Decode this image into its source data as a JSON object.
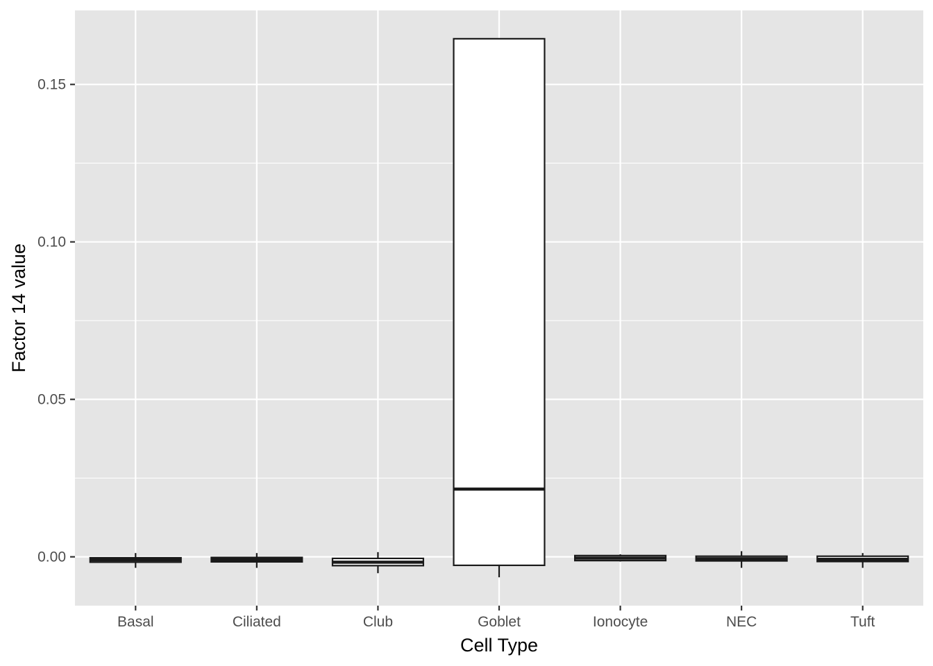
{
  "chart_data": {
    "type": "box",
    "xlabel": "Cell Type",
    "ylabel": "Factor 14 value",
    "ylim": [
      -0.0155,
      0.1735
    ],
    "yticks": [
      0.0,
      0.05,
      0.1,
      0.15
    ],
    "ytick_labels": [
      "0.00",
      "0.05",
      "0.10",
      "0.15"
    ],
    "grid": true,
    "categories": [
      "Basal",
      "Ciliated",
      "Club",
      "Goblet",
      "Ionocyte",
      "NEC",
      "Tuft"
    ],
    "boxes": [
      {
        "category": "Basal",
        "whisker_low": -0.0035,
        "q1": -0.0017,
        "median": -0.001,
        "q3": -0.0003,
        "whisker_high": 0.0012
      },
      {
        "category": "Ciliated",
        "whisker_low": -0.0035,
        "q1": -0.0016,
        "median": -0.0009,
        "q3": -0.0002,
        "whisker_high": 0.0012
      },
      {
        "category": "Club",
        "whisker_low": -0.0052,
        "q1": -0.0028,
        "median": -0.0017,
        "q3": -0.0005,
        "whisker_high": 0.0015
      },
      {
        "category": "Goblet",
        "whisker_low": -0.0065,
        "q1": -0.0027,
        "median": 0.0215,
        "q3": 0.1645,
        "whisker_high": 0.1645
      },
      {
        "category": "Ionocyte",
        "whisker_low": -0.0015,
        "q1": -0.0012,
        "median": -0.0004,
        "q3": 0.0004,
        "whisker_high": 0.0008
      },
      {
        "category": "NEC",
        "whisker_low": -0.0035,
        "q1": -0.0013,
        "median": -0.0006,
        "q3": 0.0002,
        "whisker_high": 0.0018
      },
      {
        "category": "Tuft",
        "whisker_low": -0.0035,
        "q1": -0.0015,
        "median": -0.0008,
        "q3": 0.0002,
        "whisker_high": 0.0012
      }
    ],
    "colors": {
      "panel_background": "#e5e5e5",
      "grid_major": "#ffffff",
      "box_fill": "#ffffff",
      "box_stroke": "#1a1a1a"
    }
  }
}
